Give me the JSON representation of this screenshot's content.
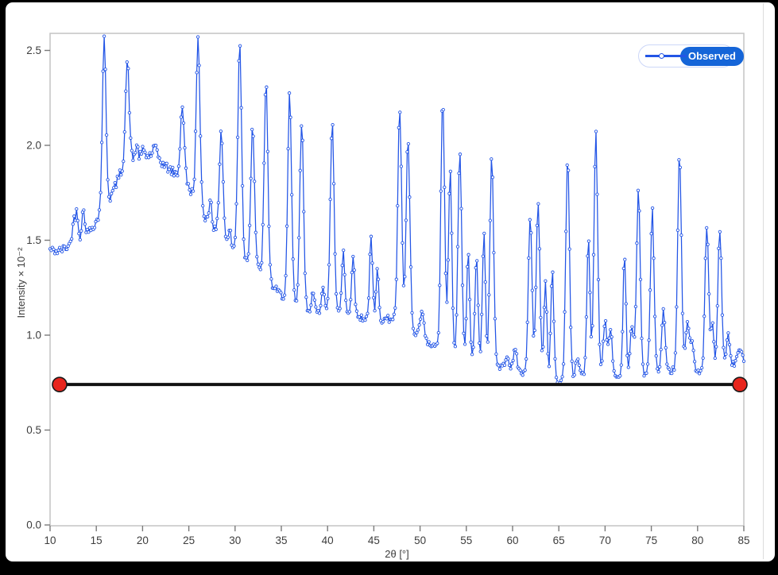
{
  "chart_data": {
    "type": "line",
    "title": "",
    "xlabel": "2θ [°]",
    "ylabel": "Intensity × 10⁻²",
    "xlim": [
      10,
      85
    ],
    "ylim": [
      0,
      2.59
    ],
    "x_ticks": [
      10,
      15,
      20,
      25,
      30,
      35,
      40,
      45,
      50,
      55,
      60,
      65,
      70,
      75,
      80,
      85
    ],
    "y_tick_labels": [
      "0.0",
      "0.5",
      "1.0",
      "1.5",
      "2.0",
      "2.5"
    ],
    "grid": false,
    "legend_position": "top-right",
    "series_name": "Observed",
    "marker_style": "open-circle",
    "x_step": 0.13,
    "noise_amp": 0.018,
    "background_anchors": [
      [
        10,
        1.45
      ],
      [
        10.8,
        1.44
      ],
      [
        11.5,
        1.455
      ],
      [
        12.3,
        1.48
      ],
      [
        13.2,
        1.5
      ],
      [
        14.2,
        1.545
      ],
      [
        15,
        1.6
      ],
      [
        15.6,
        1.64
      ],
      [
        16.3,
        1.7
      ],
      [
        17,
        1.78
      ],
      [
        17.6,
        1.855
      ],
      [
        18.1,
        1.895
      ],
      [
        18.6,
        1.92
      ],
      [
        19.2,
        1.93
      ],
      [
        19.8,
        1.94
      ],
      [
        20.5,
        1.94
      ],
      [
        21,
        1.955
      ],
      [
        21.6,
        1.95
      ],
      [
        22.2,
        1.9
      ],
      [
        23,
        1.87
      ],
      [
        23.8,
        1.84
      ],
      [
        24.5,
        1.82
      ],
      [
        25.2,
        1.76
      ],
      [
        26,
        1.7
      ],
      [
        26.8,
        1.62
      ],
      [
        27.6,
        1.56
      ],
      [
        28.4,
        1.52
      ],
      [
        29.2,
        1.48
      ],
      [
        30,
        1.45
      ],
      [
        30.8,
        1.41
      ],
      [
        31.6,
        1.38
      ],
      [
        32.4,
        1.35
      ],
      [
        33.2,
        1.32
      ],
      [
        34,
        1.26
      ],
      [
        34.8,
        1.22
      ],
      [
        35.6,
        1.19
      ],
      [
        36.4,
        1.17
      ],
      [
        37.2,
        1.15
      ],
      [
        38,
        1.13
      ],
      [
        39,
        1.12
      ],
      [
        40,
        1.12
      ],
      [
        41,
        1.13
      ],
      [
        42,
        1.11
      ],
      [
        43,
        1.1
      ],
      [
        44,
        1.09
      ],
      [
        45,
        1.08
      ],
      [
        46,
        1.08
      ],
      [
        47,
        1.09
      ],
      [
        47.8,
        1.08
      ],
      [
        48.6,
        1.05
      ],
      [
        49.4,
        1.0
      ],
      [
        50.2,
        0.97
      ],
      [
        51,
        0.95
      ],
      [
        52,
        0.93
      ],
      [
        53,
        0.91
      ],
      [
        54,
        0.89
      ],
      [
        55,
        0.87
      ],
      [
        56,
        0.86
      ],
      [
        57,
        0.85
      ],
      [
        58,
        0.84
      ],
      [
        59,
        0.83
      ],
      [
        60,
        0.82
      ],
      [
        61,
        0.8
      ],
      [
        62,
        0.79
      ],
      [
        63,
        0.78
      ],
      [
        64,
        0.77
      ],
      [
        65,
        0.755
      ],
      [
        65.6,
        0.75
      ],
      [
        66.2,
        0.77
      ],
      [
        67,
        0.79
      ],
      [
        68,
        0.8
      ],
      [
        69,
        0.8
      ],
      [
        70,
        0.79
      ],
      [
        71,
        0.78
      ],
      [
        72,
        0.78
      ],
      [
        73,
        0.79
      ],
      [
        74,
        0.79
      ],
      [
        75,
        0.79
      ],
      [
        76,
        0.8
      ],
      [
        77,
        0.81
      ],
      [
        78,
        0.82
      ],
      [
        79,
        0.82
      ],
      [
        80,
        0.8
      ],
      [
        81,
        0.8
      ],
      [
        82,
        0.81
      ],
      [
        83,
        0.83
      ],
      [
        84,
        0.845
      ],
      [
        85,
        0.875
      ]
    ],
    "peaks_center_top_sigma": [
      [
        12.55,
        1.6,
        0.16
      ],
      [
        12.9,
        1.65,
        0.14
      ],
      [
        13.6,
        1.66,
        0.16
      ],
      [
        15.85,
        2.56,
        0.2
      ],
      [
        18.35,
        2.44,
        0.2
      ],
      [
        19.35,
        2.0,
        0.14
      ],
      [
        20.1,
        1.98,
        0.14
      ],
      [
        21.3,
        1.99,
        0.14
      ],
      [
        24.3,
        2.21,
        0.2
      ],
      [
        26.0,
        2.55,
        0.2
      ],
      [
        27.35,
        1.73,
        0.14
      ],
      [
        28.5,
        2.08,
        0.2
      ],
      [
        29.4,
        1.56,
        0.13
      ],
      [
        30.5,
        2.56,
        0.2
      ],
      [
        31.9,
        2.11,
        0.2
      ],
      [
        33.35,
        2.32,
        0.2
      ],
      [
        35.9,
        2.26,
        0.2
      ],
      [
        37.2,
        2.12,
        0.2
      ],
      [
        38.4,
        1.22,
        0.16
      ],
      [
        39.5,
        1.27,
        0.16
      ],
      [
        40.5,
        2.13,
        0.2
      ],
      [
        41.7,
        1.45,
        0.16
      ],
      [
        42.75,
        1.43,
        0.16
      ],
      [
        44.7,
        1.51,
        0.16
      ],
      [
        45.4,
        1.36,
        0.14
      ],
      [
        47.8,
        2.2,
        0.2
      ],
      [
        48.7,
        2.04,
        0.2
      ],
      [
        50.2,
        1.12,
        0.22
      ],
      [
        52.45,
        2.26,
        0.2
      ],
      [
        53.25,
        1.87,
        0.18
      ],
      [
        54.3,
        1.97,
        0.2
      ],
      [
        55.2,
        1.46,
        0.16
      ],
      [
        56.1,
        1.44,
        0.16
      ],
      [
        56.9,
        1.53,
        0.16
      ],
      [
        57.75,
        1.95,
        0.2
      ],
      [
        59.4,
        0.9,
        0.18
      ],
      [
        60.3,
        0.93,
        0.18
      ],
      [
        61.9,
        1.62,
        0.2
      ],
      [
        62.75,
        1.7,
        0.2
      ],
      [
        63.55,
        1.28,
        0.16
      ],
      [
        64.3,
        1.34,
        0.16
      ],
      [
        65.95,
        1.95,
        0.2
      ],
      [
        67.0,
        0.88,
        0.18
      ],
      [
        68.2,
        1.53,
        0.16
      ],
      [
        69.0,
        2.08,
        0.2
      ],
      [
        70.0,
        1.08,
        0.2
      ],
      [
        70.6,
        1.02,
        0.18
      ],
      [
        72.1,
        1.44,
        0.16
      ],
      [
        72.9,
        1.05,
        0.18
      ],
      [
        73.6,
        1.77,
        0.2
      ],
      [
        75.1,
        1.66,
        0.2
      ],
      [
        76.3,
        1.12,
        0.18
      ],
      [
        78.05,
        1.96,
        0.2
      ],
      [
        78.9,
        1.08,
        0.18
      ],
      [
        79.4,
        0.98,
        0.18
      ],
      [
        81.0,
        1.58,
        0.2
      ],
      [
        81.6,
        1.05,
        0.16
      ],
      [
        82.4,
        1.56,
        0.2
      ],
      [
        83.3,
        1.0,
        0.18
      ],
      [
        84.5,
        0.92,
        0.22
      ]
    ],
    "background_line": {
      "y": 0.74,
      "x_start": 11.03,
      "x_end": 84.57
    },
    "colors": {
      "series": "#2355e6",
      "marker_fill": "#ffffff",
      "legend_pill": "#1565d8",
      "legend_border": "#ccd7f8",
      "background_line": "#121212",
      "handle_fill": "#e8251d",
      "handle_stroke": "#1a1a1a",
      "frame": "#c4c4c4",
      "tick_mark": "#7a7a7a",
      "tick_text": "#3d3d3d"
    }
  }
}
